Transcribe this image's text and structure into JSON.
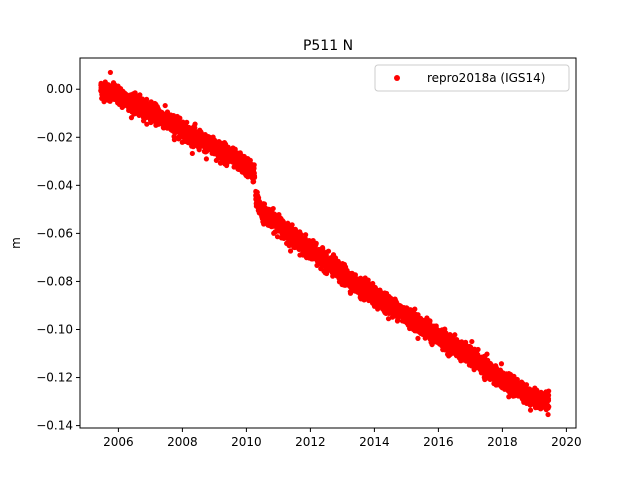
{
  "chart_data": {
    "type": "scatter",
    "title": "P511 N",
    "xlabel": "",
    "ylabel": "m",
    "xlim": [
      2004.8,
      2020.3
    ],
    "ylim": [
      -0.141,
      0.013
    ],
    "x_ticks": [
      2006,
      2008,
      2010,
      2012,
      2014,
      2016,
      2018,
      2020
    ],
    "x_tick_labels": [
      "2006",
      "2008",
      "2010",
      "2012",
      "2014",
      "2016",
      "2018",
      "2020"
    ],
    "y_ticks": [
      0.0,
      -0.02,
      -0.04,
      -0.06,
      -0.08,
      -0.1,
      -0.12,
      -0.14
    ],
    "y_tick_labels": [
      "0.00",
      "−0.02",
      "−0.04",
      "−0.06",
      "−0.08",
      "−0.10",
      "−0.12",
      "−0.14"
    ],
    "grid": false,
    "legend_position": "top-right",
    "series": [
      {
        "name": "repro2018a (IGS14)",
        "color": "#ff0000",
        "marker": "circle",
        "trend_x": [
          2005.45,
          2005.9,
          2006.2,
          2006.6,
          2007.0,
          2007.5,
          2008.0,
          2008.5,
          2009.0,
          2009.5,
          2010.0,
          2010.25,
          2010.3,
          2010.5,
          2011.0,
          2011.5,
          2012.0,
          2012.5,
          2013.0,
          2013.5,
          2014.0,
          2014.5,
          2015.0,
          2015.5,
          2016.0,
          2016.5,
          2017.0,
          2017.5,
          2018.0,
          2018.5,
          2019.0,
          2019.45
        ],
        "trend_y": [
          0.0,
          -0.002,
          -0.004,
          -0.007,
          -0.009,
          -0.013,
          -0.017,
          -0.021,
          -0.024,
          -0.028,
          -0.032,
          -0.035,
          -0.046,
          -0.051,
          -0.056,
          -0.062,
          -0.067,
          -0.072,
          -0.077,
          -0.082,
          -0.086,
          -0.09,
          -0.094,
          -0.099,
          -0.103,
          -0.107,
          -0.111,
          -0.116,
          -0.121,
          -0.125,
          -0.129,
          -0.13
        ],
        "scatter_sd": 0.0018,
        "outliers": [
          {
            "x": 2005.75,
            "y": 0.007
          },
          {
            "x": 2007.75,
            "y": -0.021
          },
          {
            "x": 2008.75,
            "y": -0.029
          },
          {
            "x": 2018.2,
            "y": -0.128
          }
        ]
      }
    ]
  }
}
